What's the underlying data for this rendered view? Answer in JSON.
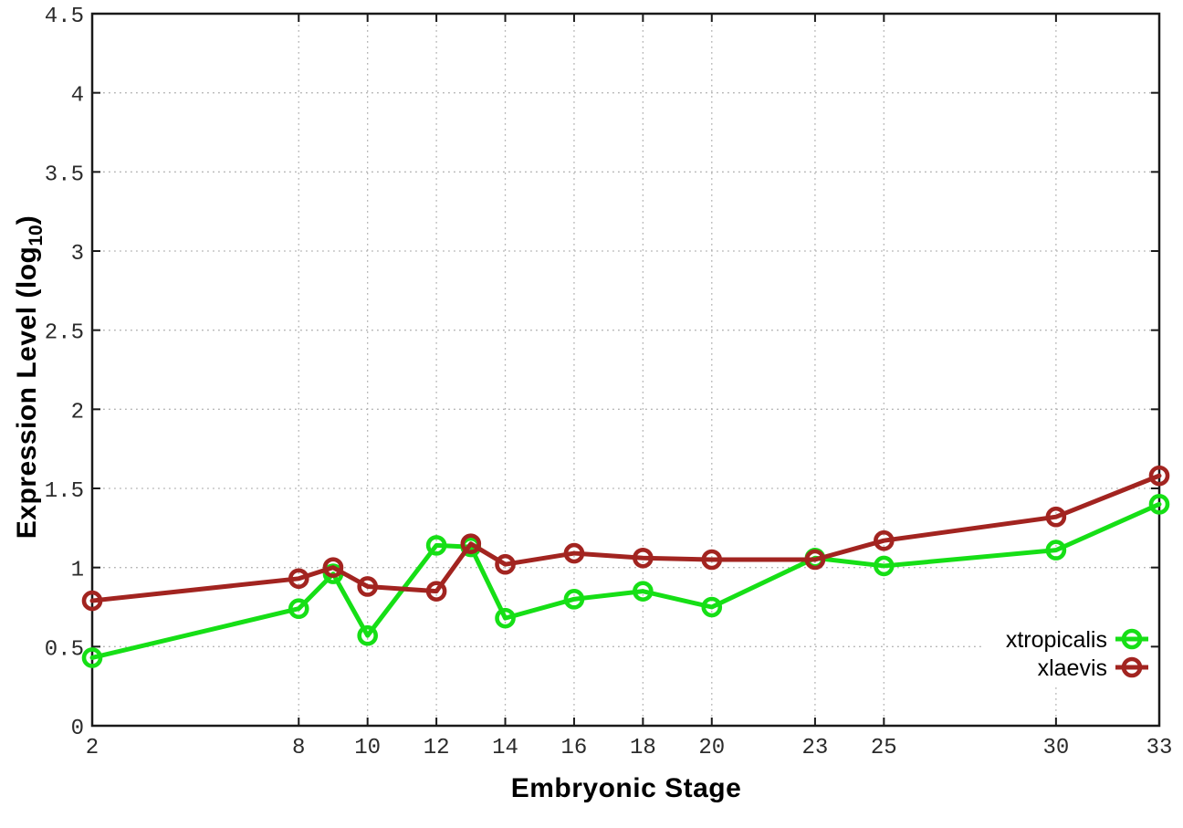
{
  "chart_data": {
    "type": "line",
    "title": "",
    "xlabel": "Embryonic Stage",
    "ylabel": "Expression Level (log10)",
    "ylabel_main": "Expression Level (log",
    "ylabel_sub": "10",
    "ylabel_close": ")",
    "x": [
      2,
      8,
      9,
      10,
      12,
      13,
      14,
      16,
      18,
      20,
      23,
      25,
      30,
      33
    ],
    "xticks": [
      2,
      8,
      10,
      12,
      14,
      16,
      18,
      20,
      23,
      25,
      30,
      33
    ],
    "yticks": [
      0,
      0.5,
      1,
      1.5,
      2,
      2.5,
      3,
      3.5,
      4,
      4.5
    ],
    "xlim": [
      2,
      33
    ],
    "ylim": [
      0,
      4.5
    ],
    "grid": true,
    "legend_position": "inside-bottom-right",
    "marker": "open-circle",
    "series": [
      {
        "name": "xtropicalis",
        "color": "#16df16",
        "values": [
          0.43,
          0.74,
          0.96,
          0.57,
          1.14,
          1.13,
          0.68,
          0.8,
          0.85,
          0.75,
          1.06,
          1.01,
          1.11,
          1.4
        ]
      },
      {
        "name": "xlaevis",
        "color": "#a22420",
        "values": [
          0.79,
          0.93,
          1.0,
          0.88,
          0.85,
          1.15,
          1.02,
          1.09,
          1.06,
          1.05,
          1.05,
          1.17,
          1.32,
          1.58
        ]
      }
    ],
    "colors": {
      "background": "#ffffff",
      "axis": "#1a1a1a",
      "grid": "#b3b3b3",
      "tick_label": "#2b2b2b"
    }
  }
}
